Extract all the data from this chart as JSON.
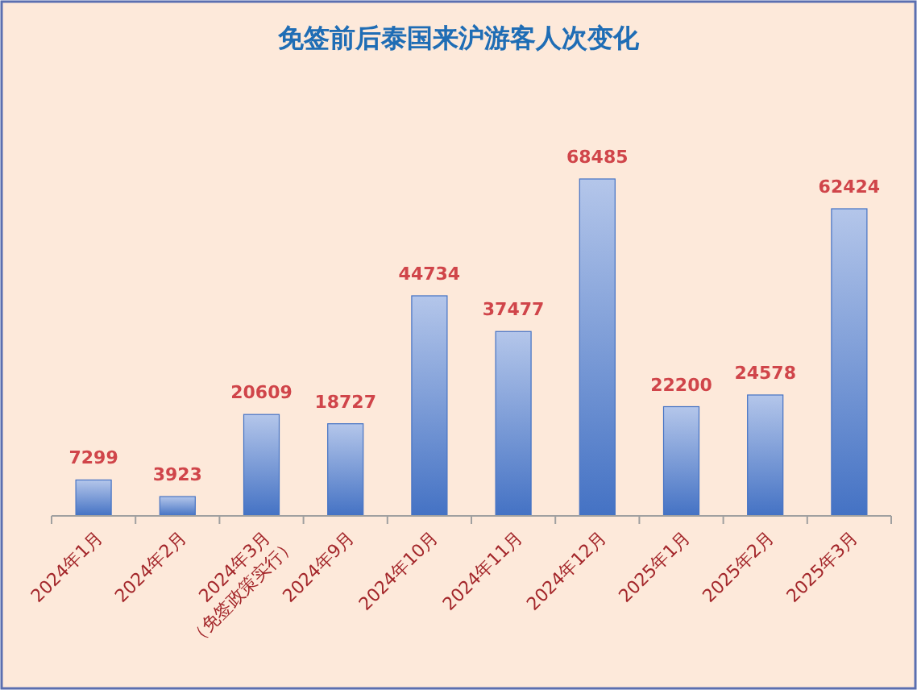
{
  "chart_data": {
    "type": "bar",
    "title": "免签前后泰国来沪游客人次变化",
    "categories": [
      "2024年1月",
      "2024年2月",
      "2024年3月\n（免签政策实行）",
      "2024年9月",
      "2024年10月",
      "2024年11月",
      "2024年12月",
      "2025年1月",
      "2025年2月",
      "2025年3月"
    ],
    "values": [
      7299,
      3923,
      20609,
      18727,
      44734,
      37477,
      68485,
      22200,
      24578,
      62424
    ],
    "color": "#4472c4",
    "data_labels": true
  }
}
